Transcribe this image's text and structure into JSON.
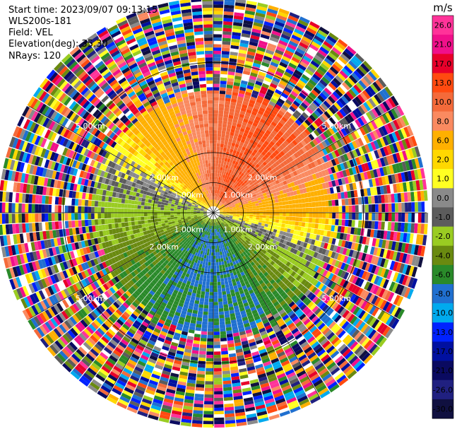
{
  "header": {
    "start_time_label": "Start time:",
    "start_time": "2023/09/07 09:13:15",
    "instrument": "WLS200s-181",
    "field_label": "Field:",
    "field": "VEL",
    "elevation_label": "Elevation(deg):",
    "elevation": "35.30",
    "nrays_label": "NRays:",
    "nrays": "120"
  },
  "colorbar": {
    "unit": "m/s",
    "ticks": [
      "26.0",
      "21.0",
      "17.0",
      "13.0",
      "10.0",
      "8.0",
      "6.0",
      "2.0",
      "1.0",
      "0.0",
      "-1.0",
      "-2.0",
      "-4.0",
      "-6.0",
      "-8.0",
      "-10.0",
      "-13.0",
      "-17.0",
      "-21.0",
      "-26.0",
      "-30.0"
    ],
    "colors": [
      "#ff3399",
      "#f0108a",
      "#e8002a",
      "#ff4a10",
      "#f46a3a",
      "#fa8a60",
      "#ffb000",
      "#ffd800",
      "#ffff22",
      "#8a8a8a",
      "#5c5c5c",
      "#9acc22",
      "#6a8a10",
      "#2a8a2a",
      "#2070d0",
      "#00aaee",
      "#0022ff",
      "#0010a0",
      "#0a0a60",
      "#202080",
      "#101040"
    ]
  },
  "chart_data": {
    "type": "heatmap",
    "projection": "polar PPI",
    "field": "VEL",
    "unit": "m/s",
    "nrays": 120,
    "range_rings_km": [
      1.0,
      2.0,
      5.0
    ],
    "ring_labels": [
      "1.00km",
      "2.00km",
      "5.00km"
    ],
    "max_range_km": 7.1,
    "clean_range_km": 4.0,
    "velocity_pattern": [
      {
        "sector": "north-northeast",
        "value_ms": 10
      },
      {
        "sector": "east",
        "value_ms": 6
      },
      {
        "sector": "northwest",
        "value_ms": 0
      },
      {
        "sector": "west",
        "value_ms": -4
      },
      {
        "sector": "south",
        "value_ms": -8
      },
      {
        "sector": "southeast",
        "value_ms": -2
      },
      {
        "sector": "far range",
        "value_ms": "noise"
      }
    ]
  }
}
